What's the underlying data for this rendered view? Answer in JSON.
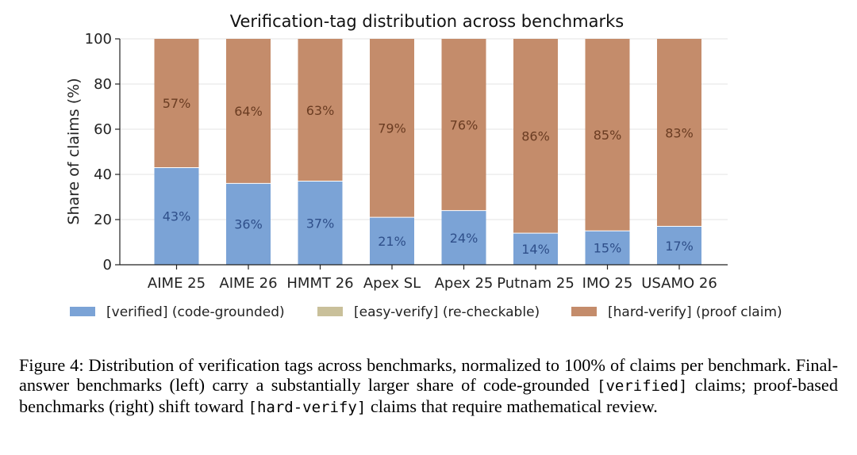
{
  "chart_data": {
    "type": "bar",
    "stacked": true,
    "title": "Verification-tag distribution across benchmarks",
    "xlabel": "",
    "ylabel": "Share of claims (%)",
    "ylim": [
      0,
      100
    ],
    "yticks": [
      "0",
      "20",
      "40",
      "60",
      "80",
      "100"
    ],
    "grid": "horizontal",
    "legend_position": "bottom",
    "categories": [
      "AIME 25",
      "AIME 26",
      "HMMT 26",
      "Apex SL",
      "Apex 25",
      "Putnam 25",
      "IMO 25",
      "USAMO 26"
    ],
    "series": [
      {
        "name": "[verified] (code-grounded)",
        "color": "#7ba3d6",
        "label_color": "#2f4f8a",
        "values": [
          43,
          36,
          37,
          21,
          24,
          14,
          15,
          17
        ],
        "labels": [
          "43%",
          "36%",
          "37%",
          "21%",
          "24%",
          "14%",
          "15%",
          "17%"
        ]
      },
      {
        "name": "[easy-verify] (re-checkable)",
        "color": "#c9c09a",
        "label_color": "#5e5838",
        "values": [
          0,
          0,
          0,
          0,
          0,
          0,
          0,
          0
        ],
        "labels": []
      },
      {
        "name": "[hard-verify] (proof claim)",
        "color": "#c48c6b",
        "label_color": "#6a3c22",
        "values": [
          57,
          64,
          63,
          79,
          76,
          86,
          85,
          83
        ],
        "labels": [
          "57%",
          "64%",
          "63%",
          "79%",
          "76%",
          "86%",
          "85%",
          "83%"
        ]
      }
    ]
  },
  "caption": {
    "prefix": "Figure 4: Distribution of verification tags across benchmarks, normalized to ",
    "percent": "100%",
    "part2": " of claims per benchmark. Final-answer benchmarks (left) carry a substantially larger share of code-grounded ",
    "tag_verified": "[verified]",
    "part3": " claims; proof-based benchmarks (right) shift toward ",
    "tag_hard": "[hard-verify]",
    "part4": " claims that require mathematical review."
  }
}
